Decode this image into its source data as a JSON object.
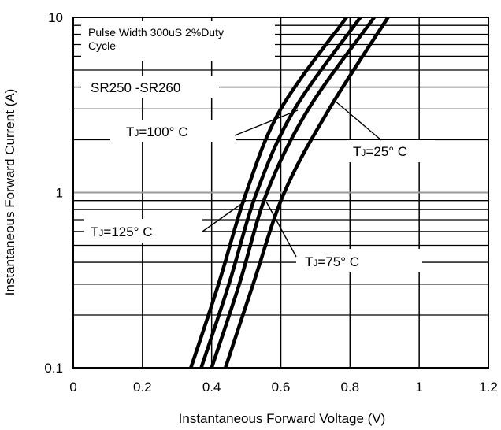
{
  "chart_data": {
    "type": "line",
    "xlabel": "Instantaneous Forward Voltage (V)",
    "ylabel": "Instantaneous Forward Current (A)",
    "xlim": [
      0,
      1.2
    ],
    "ylim": [
      0.1,
      10
    ],
    "yscale": "log",
    "x_ticks": [
      0,
      0.2,
      0.4,
      0.6,
      0.8,
      1,
      1.2
    ],
    "x_tick_labels": [
      "0",
      "0.2",
      "0.4",
      "0.6",
      "0.8",
      "1",
      "1.2"
    ],
    "y_ticks": [
      0.1,
      1,
      10
    ],
    "y_tick_labels": [
      "0.1",
      "1",
      "10"
    ],
    "grid": true,
    "annotations": {
      "pulse_line1": "Pulse Width 300uS 2%Duty",
      "pulse_line2": "Cycle",
      "part_number": "SR250 -SR260"
    },
    "series": [
      {
        "name": "TJ=125° C",
        "label_t": "T",
        "label_sub": "J",
        "label_rest": "=125° C",
        "points": [
          [
            0.34,
            0.1
          ],
          [
            0.42,
            0.3
          ],
          [
            0.5,
            1.0
          ],
          [
            0.6,
            3.0
          ],
          [
            0.79,
            10
          ]
        ]
      },
      {
        "name": "TJ=100° C",
        "label_t": "T",
        "label_sub": "J",
        "label_rest": "=100° C",
        "points": [
          [
            0.37,
            0.1
          ],
          [
            0.45,
            0.3
          ],
          [
            0.53,
            1.0
          ],
          [
            0.64,
            3.0
          ],
          [
            0.83,
            10
          ]
        ]
      },
      {
        "name": "TJ=75° C",
        "label_t": "T",
        "label_sub": "J",
        "label_rest": "=75° C",
        "points": [
          [
            0.4,
            0.1
          ],
          [
            0.48,
            0.3
          ],
          [
            0.56,
            1.0
          ],
          [
            0.68,
            3.0
          ],
          [
            0.87,
            10
          ]
        ]
      },
      {
        "name": "TJ=25° C",
        "label_t": "T",
        "label_sub": "J",
        "label_rest": "=25° C",
        "points": [
          [
            0.44,
            0.1
          ],
          [
            0.52,
            0.3
          ],
          [
            0.61,
            1.0
          ],
          [
            0.74,
            3.0
          ],
          [
            0.91,
            10
          ]
        ]
      }
    ]
  }
}
